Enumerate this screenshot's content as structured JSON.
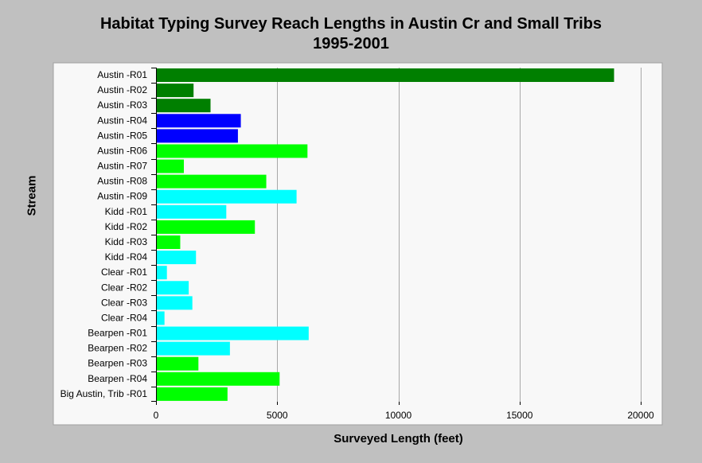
{
  "chart_data": {
    "type": "bar",
    "orientation": "horizontal",
    "title_lines": [
      "Habitat Typing Survey Reach Lengths in Austin Cr and Small Tribs",
      "1995-2001"
    ],
    "xlabel": "Surveyed Length (feet)",
    "ylabel": "Stream",
    "xlim": [
      0,
      20000
    ],
    "xticks": [
      "0",
      "5000",
      "10000",
      "15000",
      "20000"
    ],
    "xtick_values": [
      0,
      5000,
      10000,
      15000,
      20000
    ],
    "grid": "vertical",
    "categories": [
      "Austin -R01",
      "Austin -R02",
      "Austin -R03",
      "Austin -R04",
      "Austin -R05",
      "Austin -R06",
      "Austin -R07",
      "Austin -R08",
      "Austin -R09",
      "Kidd -R01",
      "Kidd -R02",
      "Kidd -R03",
      "Kidd -R04",
      "Clear -R01",
      "Clear -R02",
      "Clear -R03",
      "Clear -R04",
      "Bearpen -R01",
      "Bearpen -R02",
      "Bearpen -R03",
      "Bearpen -R04",
      "Big Austin, Trib -R01"
    ],
    "values": [
      18900,
      1550,
      2250,
      3500,
      3380,
      6250,
      1150,
      4550,
      5800,
      2900,
      4080,
      1000,
      1650,
      450,
      1350,
      1500,
      350,
      6300,
      3050,
      1750,
      5100,
      2950
    ],
    "bar_colors": [
      "#007f00",
      "#007f00",
      "#007f00",
      "#0000ff",
      "#0000ff",
      "#00ff00",
      "#00ff00",
      "#00ff00",
      "#00ffff",
      "#00ffff",
      "#00ff00",
      "#00ff00",
      "#00ffff",
      "#00ffff",
      "#00ffff",
      "#00ffff",
      "#00ffff",
      "#00ffff",
      "#00ffff",
      "#00ff00",
      "#00ff00",
      "#00ff00"
    ]
  }
}
